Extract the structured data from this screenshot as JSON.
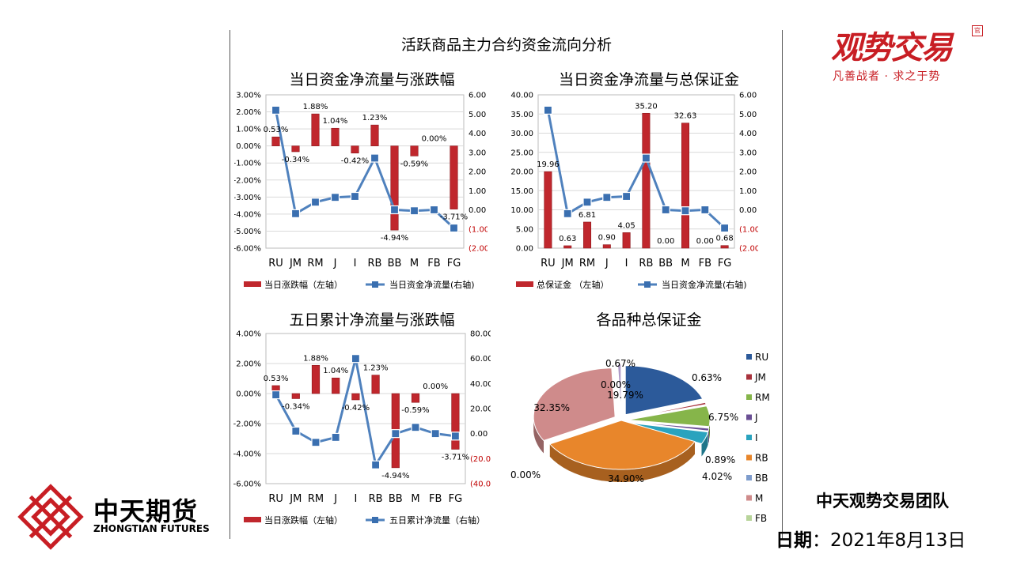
{
  "page": {
    "main_title": "活跃商品主力合约资金流向分析",
    "team": "中天观势交易团队",
    "date_label": "日期",
    "date_sep": "：",
    "date_value": "2021年8月13日",
    "brand_logo_text": "观势交易",
    "brand_logo_slogan": "凡善战者 · 求之于势",
    "brand_seal": "官",
    "company_cn": "中天期货",
    "company_en": "ZHONGTIAN FUTURES"
  },
  "colors": {
    "bar": "#c0272d",
    "line": "#4f81bd",
    "marker": "#3a6fb0",
    "neg": "#c00000"
  },
  "chart_data": [
    {
      "type": "bar",
      "title": "当日资金净流量与涨跌幅",
      "categories": [
        "RU",
        "JM",
        "RM",
        "J",
        "I",
        "RB",
        "BB",
        "M",
        "FB",
        "FG"
      ],
      "series": [
        {
          "name": "当日涨跌幅（左轴）",
          "kind": "bar",
          "axis": "left",
          "values": [
            0.53,
            -0.34,
            1.88,
            1.04,
            -0.42,
            1.23,
            -4.94,
            -0.59,
            0.0,
            -3.71
          ]
        },
        {
          "name": "当日资金净流量(右轴)",
          "kind": "line",
          "axis": "right",
          "values": [
            5.2,
            -0.2,
            0.4,
            0.65,
            0.7,
            2.7,
            0.0,
            -0.05,
            0.0,
            -0.95
          ]
        }
      ],
      "data_labels": [
        "0.53%",
        "-0.34%",
        "1.88%",
        "1.04%",
        "-0.42%",
        "1.23%",
        "-4.94%",
        "-0.59%",
        "0.00%",
        "-3.71%"
      ],
      "y_left": {
        "ticks": [
          "3.00%",
          "2.00%",
          "1.00%",
          "0.00%",
          "-1.00%",
          "-2.00%",
          "-3.00%",
          "-4.00%",
          "-5.00%",
          "-6.00%"
        ],
        "min": -6,
        "max": 3
      },
      "y_right": {
        "ticks": [
          "6.00",
          "5.00",
          "4.00",
          "3.00",
          "2.00",
          "1.00",
          "0.00",
          "(1.00)",
          "(2.00)"
        ],
        "min": -2,
        "max": 6
      }
    },
    {
      "type": "bar",
      "title": "当日资金净流量与总保证金",
      "categories": [
        "RU",
        "JM",
        "RM",
        "J",
        "I",
        "RB",
        "BB",
        "M",
        "FB",
        "FG"
      ],
      "series": [
        {
          "name": "总保证金 （左轴）",
          "kind": "bar",
          "axis": "left",
          "values": [
            19.96,
            0.63,
            6.81,
            0.9,
            4.05,
            35.2,
            0.0,
            32.63,
            0.0,
            0.68
          ]
        },
        {
          "name": "当日资金净流量(右轴)",
          "kind": "line",
          "axis": "right",
          "values": [
            5.2,
            -0.2,
            0.4,
            0.65,
            0.7,
            2.7,
            0.0,
            -0.05,
            0.0,
            -0.95
          ]
        }
      ],
      "data_labels": [
        "19.96",
        "0.63",
        "6.81",
        "0.90",
        "4.05",
        "35.20",
        "0.00",
        "32.63",
        "0.00",
        "0.68"
      ],
      "y_left": {
        "ticks": [
          "40.00",
          "35.00",
          "30.00",
          "25.00",
          "20.00",
          "15.00",
          "10.00",
          "5.00",
          "0.00"
        ],
        "min": 0,
        "max": 40
      },
      "y_right": {
        "ticks": [
          "6.00",
          "5.00",
          "4.00",
          "3.00",
          "2.00",
          "1.00",
          "0.00",
          "(1.00)",
          "(2.00)"
        ],
        "min": -2,
        "max": 6
      }
    },
    {
      "type": "bar",
      "title": "五日累计净流量与涨跌幅",
      "categories": [
        "RU",
        "JM",
        "RM",
        "J",
        "I",
        "RB",
        "BB",
        "M",
        "FB",
        "FG"
      ],
      "series": [
        {
          "name": "当日涨跌幅（左轴）",
          "kind": "bar",
          "axis": "left",
          "values": [
            0.53,
            -0.34,
            1.88,
            1.04,
            -0.42,
            1.23,
            -4.94,
            -0.59,
            0.0,
            -3.71
          ]
        },
        {
          "name": "五日累计净流量（右轴）",
          "kind": "line",
          "axis": "right",
          "values": [
            31,
            2,
            -7,
            -3,
            60,
            -25,
            0,
            5,
            0,
            -2
          ]
        }
      ],
      "data_labels": [
        "0.53%",
        "-0.34%",
        "1.88%",
        "1.04%",
        "-0.42%",
        "1.23%",
        "-4.94%",
        "-0.59%",
        "0.00%",
        "-3.71%"
      ],
      "y_left": {
        "ticks": [
          "4.00%",
          "2.00%",
          "0.00%",
          "-2.00%",
          "-4.00%",
          "-6.00%"
        ],
        "min": -6,
        "max": 4
      },
      "y_right": {
        "ticks": [
          "80.00",
          "60.00",
          "40.00",
          "20.00",
          "0.00",
          "(20.00)",
          "(40.00)"
        ],
        "min": -40,
        "max": 80
      }
    },
    {
      "type": "pie",
      "title": "各品种总保证金",
      "labels": [
        "RU",
        "JM",
        "RM",
        "J",
        "I",
        "RB",
        "BB",
        "M",
        "FB",
        "FG"
      ],
      "values": [
        19.79,
        0.63,
        6.75,
        0.89,
        4.02,
        34.9,
        0.0,
        32.35,
        0.0,
        0.67
      ],
      "value_labels": [
        "19.79%",
        "0.63%",
        "6.75%",
        "0.89%",
        "4.02%",
        "34.90%",
        "0.00%",
        "32.35%",
        "0.00%",
        "0.67%"
      ],
      "colors": [
        "#2c5a9a",
        "#a8323c",
        "#86b54a",
        "#6a4f94",
        "#2aa3be",
        "#e8862b",
        "#7e9ccc",
        "#cf8b8b",
        "#b8d49a",
        "#b09cc8"
      ],
      "legend_position": "right"
    }
  ]
}
